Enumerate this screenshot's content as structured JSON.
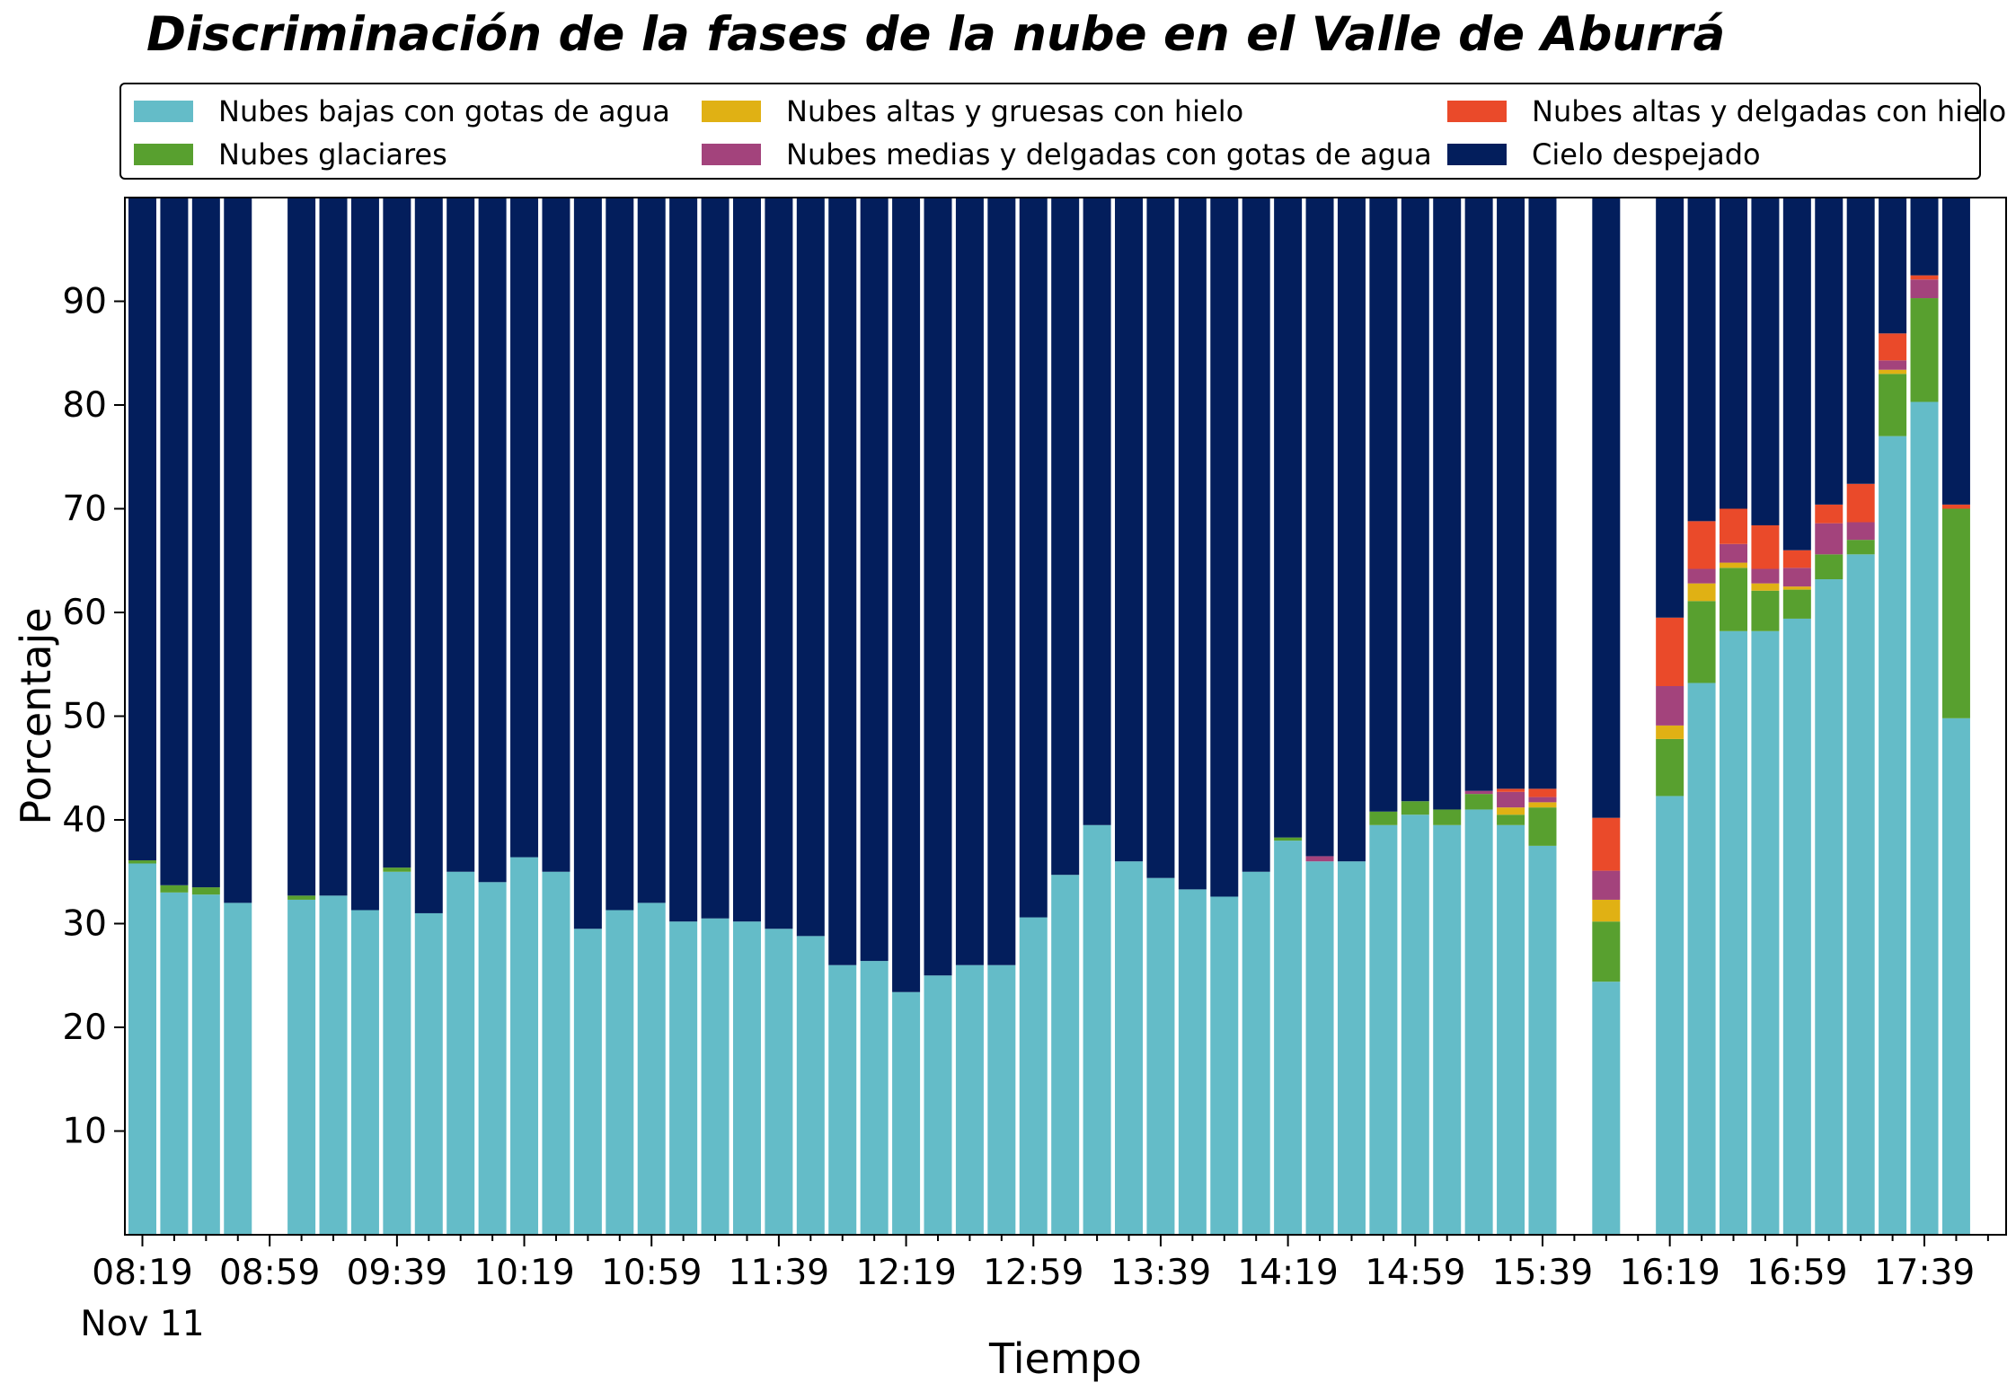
{
  "colors": {
    "low_water": "#64BCC8",
    "glacial": "#58A02F",
    "high_thick_ice": "#E0B114",
    "mid_thin_water": "#A3437C",
    "high_thin_ice": "#EA4A2A",
    "clear_sky": "#031E5C"
  },
  "chart_data": {
    "type": "bar",
    "stacked": true,
    "title": "Discriminación de la fases de la nube en el Valle de Aburrá",
    "xlabel": "Tiempo",
    "ylabel": "Porcentaje",
    "ylim": [
      0,
      100
    ],
    "yticks": [
      10,
      20,
      30,
      40,
      50,
      60,
      70,
      80,
      90
    ],
    "x_date_label": "Nov 11",
    "x_start": "08:19",
    "interval_minutes": 10,
    "xtick_labels": [
      "08:19",
      "08:59",
      "09:39",
      "10:19",
      "10:59",
      "11:39",
      "12:19",
      "12:59",
      "13:39",
      "14:19",
      "14:59",
      "15:39",
      "16:19",
      "16:59",
      "17:39"
    ],
    "categories": [
      "08:19",
      "08:29",
      "08:39",
      "08:49",
      "08:59",
      "09:09",
      "09:19",
      "09:29",
      "09:39",
      "09:49",
      "09:59",
      "10:09",
      "10:19",
      "10:29",
      "10:39",
      "10:49",
      "10:59",
      "11:09",
      "11:19",
      "11:29",
      "11:39",
      "11:49",
      "11:59",
      "12:09",
      "12:19",
      "12:29",
      "12:39",
      "12:49",
      "12:59",
      "13:09",
      "13:19",
      "13:29",
      "13:39",
      "13:49",
      "13:59",
      "14:09",
      "14:19",
      "14:29",
      "14:39",
      "14:49",
      "14:59",
      "15:09",
      "15:19",
      "15:29",
      "15:39",
      "15:49",
      "15:59",
      "16:09",
      "16:19",
      "16:29",
      "16:39",
      "16:49",
      "16:59",
      "17:09",
      "17:19",
      "17:29",
      "17:39",
      "17:49"
    ],
    "series": [
      {
        "name": "Nubes bajas con gotas de agua",
        "color_key": "low_water",
        "values": [
          35.8,
          33.0,
          32.8,
          32.0,
          null,
          32.3,
          32.7,
          31.3,
          35.0,
          31.0,
          35.0,
          34.0,
          36.4,
          35.0,
          29.5,
          31.3,
          32.0,
          30.2,
          30.5,
          30.2,
          29.5,
          28.8,
          26.0,
          26.4,
          23.4,
          25.0,
          26.0,
          26.0,
          30.6,
          34.7,
          39.5,
          36.0,
          34.4,
          33.3,
          32.6,
          35.0,
          38.0,
          36.0,
          36.0,
          39.5,
          40.5,
          39.5,
          41.0,
          39.5,
          37.5,
          null,
          24.4,
          null,
          42.3,
          53.2,
          58.2,
          58.2,
          59.4,
          63.2,
          65.6,
          77.0,
          80.3,
          49.8
        ]
      },
      {
        "name": "Nubes glaciares",
        "color_key": "glacial",
        "values": [
          0.3,
          0.7,
          0.7,
          0,
          null,
          0.4,
          0,
          0,
          0.4,
          0,
          0,
          0,
          0,
          0,
          0,
          0,
          0,
          0,
          0,
          0,
          0,
          0,
          0,
          0,
          0,
          0,
          0,
          0,
          0,
          0,
          0,
          0,
          0,
          0,
          0,
          0,
          0.3,
          0,
          0,
          1.3,
          1.3,
          1.5,
          1.5,
          1.0,
          3.7,
          null,
          5.8,
          null,
          5.5,
          7.9,
          6.1,
          3.9,
          2.8,
          2.4,
          1.4,
          6.0,
          10.0,
          20.2
        ]
      },
      {
        "name": "Nubes altas y gruesas con hielo",
        "color_key": "high_thick_ice",
        "values": [
          0,
          0,
          0,
          0,
          null,
          0,
          0,
          0,
          0,
          0,
          0,
          0,
          0,
          0,
          0,
          0,
          0,
          0,
          0,
          0,
          0,
          0,
          0,
          0,
          0,
          0,
          0,
          0,
          0,
          0,
          0,
          0,
          0,
          0,
          0,
          0,
          0,
          0,
          0,
          0,
          0,
          0,
          0,
          0.7,
          0.5,
          null,
          2.1,
          null,
          1.3,
          1.7,
          0.5,
          0.7,
          0.3,
          0,
          0,
          0.4,
          0,
          0
        ]
      },
      {
        "name": "Nubes medias y delgadas con gotas de agua",
        "color_key": "mid_thin_water",
        "values": [
          0,
          0,
          0,
          0,
          null,
          0,
          0,
          0,
          0,
          0,
          0,
          0,
          0,
          0,
          0,
          0,
          0,
          0,
          0,
          0,
          0,
          0,
          0,
          0,
          0,
          0,
          0,
          0,
          0,
          0,
          0,
          0,
          0,
          0,
          0,
          0,
          0,
          0.5,
          0,
          0,
          0,
          0,
          0.3,
          1.5,
          0.5,
          null,
          2.8,
          null,
          3.8,
          1.4,
          1.8,
          1.4,
          1.8,
          3.0,
          1.7,
          0.9,
          1.8,
          0
        ]
      },
      {
        "name": "Nubes altas y delgadas con hielo",
        "color_key": "high_thin_ice",
        "values": [
          0,
          0,
          0,
          0,
          null,
          0,
          0,
          0,
          0,
          0,
          0,
          0,
          0,
          0,
          0,
          0,
          0,
          0,
          0,
          0,
          0,
          0,
          0,
          0,
          0,
          0,
          0,
          0,
          0,
          0,
          0,
          0,
          0,
          0,
          0,
          0,
          0,
          0,
          0,
          0,
          0,
          0,
          0,
          0.3,
          0.8,
          null,
          5.1,
          null,
          6.6,
          4.6,
          3.4,
          4.2,
          1.7,
          1.8,
          3.7,
          2.6,
          0.4,
          0.4
        ]
      },
      {
        "name": "Cielo despejado",
        "color_key": "clear_sky",
        "values": [
          63.9,
          66.3,
          66.5,
          68.0,
          null,
          67.3,
          67.3,
          68.7,
          64.6,
          69.0,
          65.0,
          66.0,
          63.6,
          65.0,
          70.5,
          68.7,
          68.0,
          69.8,
          69.5,
          69.8,
          70.5,
          71.2,
          74.0,
          73.6,
          76.6,
          75.0,
          74.0,
          74.0,
          69.4,
          65.3,
          60.5,
          64.0,
          65.6,
          66.7,
          67.4,
          65.0,
          61.7,
          63.5,
          64.0,
          59.2,
          58.2,
          59.0,
          57.2,
          57.0,
          57.0,
          null,
          59.8,
          null,
          40.5,
          31.2,
          30.0,
          31.6,
          34.0,
          29.6,
          27.6,
          13.1,
          7.5,
          29.6
        ]
      }
    ],
    "legend": {
      "placement": "top, above plot",
      "columns": [
        [
          "Nubes bajas con gotas de agua",
          "Nubes glaciares"
        ],
        [
          "Nubes altas y gruesas con hielo",
          "Nubes medias y delgadas con gotas de agua"
        ],
        [
          "Nubes altas y delgadas con hielo",
          "Cielo despejado"
        ]
      ]
    },
    "grid": false
  }
}
